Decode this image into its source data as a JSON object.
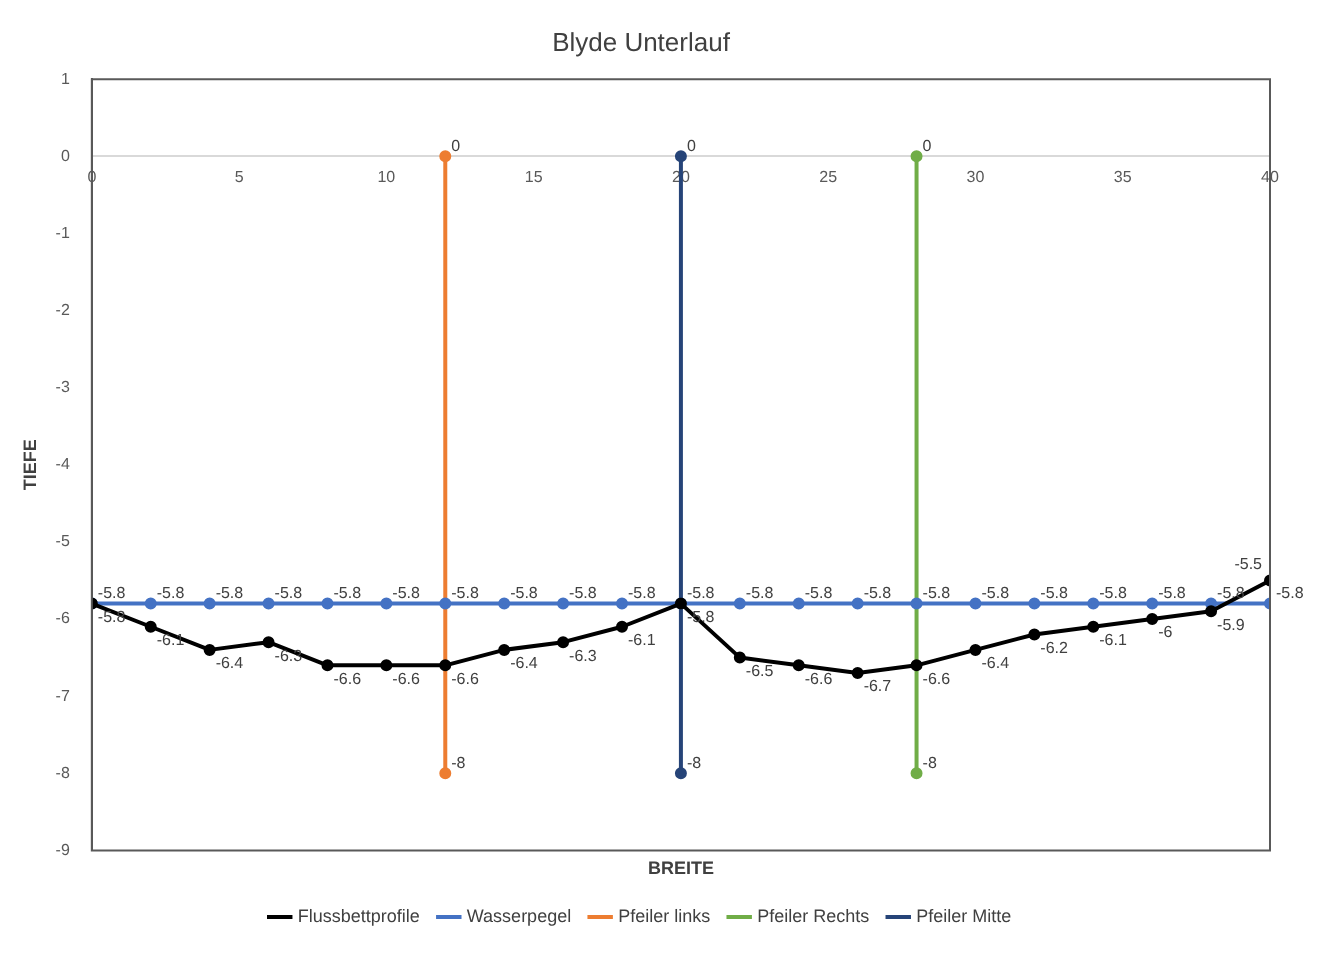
{
  "chart_data": {
    "type": "line",
    "title": "Blyde Unterlauf",
    "xlabel": "BREITE",
    "ylabel": "TIEFE",
    "xlim": [
      0,
      40
    ],
    "xticks": [
      0,
      5,
      10,
      15,
      20,
      25,
      30,
      35,
      40
    ],
    "ylim": [
      -9,
      1
    ],
    "yticks": [
      1,
      0,
      -1,
      -2,
      -3,
      -4,
      -5,
      -6,
      -7,
      -8,
      -9
    ],
    "grid": false,
    "legend": "bottom",
    "marker": "circle",
    "line_style": "solid",
    "data_labels": true,
    "series": [
      {
        "name": "Flussbettprofile",
        "color": "#000000",
        "x": [
          0,
          2,
          4,
          6,
          8,
          10,
          12,
          14,
          16,
          18,
          20,
          22,
          24,
          26,
          28,
          30,
          32,
          34,
          36,
          38,
          40
        ],
        "values": [
          -5.8,
          -6.1,
          -6.4,
          -6.3,
          -6.6,
          -6.6,
          -6.6,
          -6.4,
          -6.3,
          -6.1,
          -5.8,
          -6.5,
          -6.6,
          -6.7,
          -6.6,
          -6.4,
          -6.2,
          -6.1,
          -6.0,
          -5.9,
          -5.5
        ]
      },
      {
        "name": "Wasserpegel",
        "color": "#4472c4",
        "x": [
          0,
          2,
          4,
          6,
          8,
          10,
          12,
          14,
          16,
          18,
          20,
          22,
          24,
          26,
          28,
          30,
          32,
          34,
          36,
          38,
          40
        ],
        "values": [
          -5.8,
          -5.8,
          -5.8,
          -5.8,
          -5.8,
          -5.8,
          -5.8,
          -5.8,
          -5.8,
          -5.8,
          -5.8,
          -5.8,
          -5.8,
          -5.8,
          -5.8,
          -5.8,
          -5.8,
          -5.8,
          -5.8,
          -5.8,
          -5.8
        ]
      },
      {
        "name": "Pfeiler links",
        "color": "#ed7d31",
        "x": [
          12,
          12
        ],
        "values": [
          0,
          -8
        ]
      },
      {
        "name": "Pfeiler Rechts",
        "color": "#70ad47",
        "x": [
          28,
          28
        ],
        "values": [
          0,
          -8
        ]
      },
      {
        "name": "Pfeiler Mitte",
        "color": "#264478",
        "x": [
          20,
          20
        ],
        "values": [
          0,
          -8
        ]
      }
    ]
  }
}
